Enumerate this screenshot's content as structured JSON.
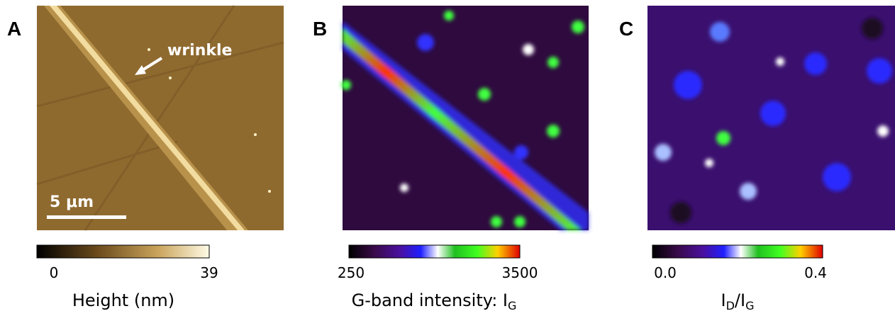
{
  "panels": [
    {
      "letter": "A",
      "annotation": "wrinkle",
      "scale_bar": "5 μm",
      "colorbar": {
        "ticks": [
          "0",
          "39"
        ],
        "title": [
          {
            "text": "Height (nm)"
          }
        ]
      }
    },
    {
      "letter": "B",
      "colorbar": {
        "ticks": [
          "250",
          "3500"
        ],
        "title": [
          {
            "text": "G-band intensity: I"
          },
          {
            "text": "G",
            "sub": true
          }
        ]
      }
    },
    {
      "letter": "C",
      "colorbar": {
        "ticks": [
          "0.0",
          "0.4"
        ],
        "title": [
          {
            "text": "I"
          },
          {
            "text": "D",
            "sub": true
          },
          {
            "text": "/I"
          },
          {
            "text": "G",
            "sub": true
          }
        ]
      }
    }
  ]
}
